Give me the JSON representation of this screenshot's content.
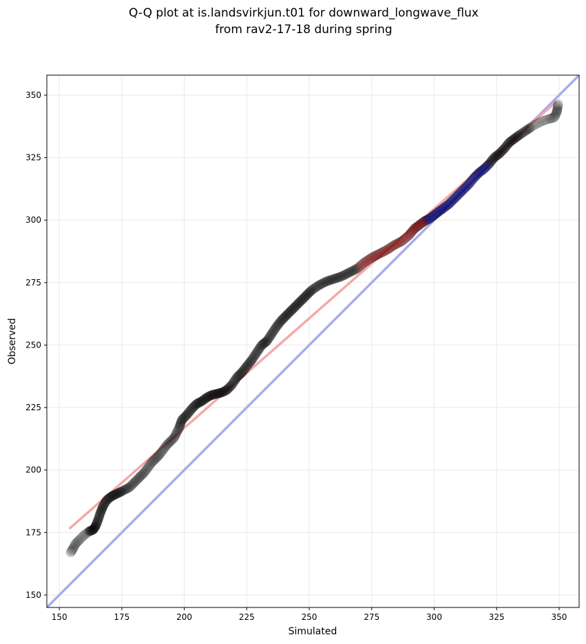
{
  "chart_data": {
    "type": "scatter",
    "title": [
      "Q-Q plot at is.landsvirkjun.t01 for downward_longwave_flux",
      "from rav2-17-18 during spring"
    ],
    "xlabel": "Simulated",
    "ylabel": "Observed",
    "xlim": [
      145,
      358
    ],
    "ylim": [
      145,
      358
    ],
    "xticks": [
      150,
      175,
      200,
      225,
      250,
      275,
      300,
      325,
      350
    ],
    "yticks": [
      150,
      175,
      200,
      225,
      250,
      275,
      300,
      325,
      350
    ],
    "grid": true,
    "colors": {
      "points": "#000000",
      "reference_line": "#aaaaee",
      "fit_line": "#f5a8a8",
      "highlight_low": "#8b0000",
      "highlight_high": "#00008b"
    },
    "series": [
      {
        "name": "quantiles",
        "kind": "scatter",
        "points": [
          [
            154.5,
            167
          ],
          [
            155.5,
            168.5
          ],
          [
            156.5,
            170.5
          ],
          [
            158,
            172
          ],
          [
            160,
            174
          ],
          [
            162,
            175.5
          ],
          [
            163.5,
            176
          ],
          [
            164.5,
            177.5
          ],
          [
            165.5,
            180
          ],
          [
            166.5,
            183
          ],
          [
            167.5,
            185.5
          ],
          [
            169,
            188
          ],
          [
            171,
            189.5
          ],
          [
            173,
            190.5
          ],
          [
            175,
            191.5
          ],
          [
            178,
            193
          ],
          [
            181,
            196
          ],
          [
            184,
            199
          ],
          [
            187,
            203
          ],
          [
            190,
            206
          ],
          [
            193,
            210
          ],
          [
            196,
            213
          ],
          [
            198,
            217
          ],
          [
            199,
            220
          ],
          [
            201,
            222
          ],
          [
            203,
            224.5
          ],
          [
            205,
            226.5
          ],
          [
            207,
            227.5
          ],
          [
            209,
            229
          ],
          [
            211,
            230
          ],
          [
            213,
            230.5
          ],
          [
            215,
            231
          ],
          [
            217,
            232
          ],
          [
            219,
            234
          ],
          [
            221,
            237
          ],
          [
            223,
            239
          ],
          [
            225,
            241.5
          ],
          [
            227,
            244
          ],
          [
            229,
            247
          ],
          [
            231,
            250
          ],
          [
            233,
            251.5
          ],
          [
            235,
            254.5
          ],
          [
            237,
            257.5
          ],
          [
            239,
            260
          ],
          [
            241,
            262
          ],
          [
            243,
            264
          ],
          [
            245,
            266
          ],
          [
            247,
            268
          ],
          [
            249,
            270
          ],
          [
            251,
            272
          ],
          [
            254,
            274
          ],
          [
            257,
            275.5
          ],
          [
            260,
            276.5
          ],
          [
            263,
            277.5
          ],
          [
            266,
            279
          ],
          [
            269,
            280.5
          ],
          [
            272,
            283
          ],
          [
            275,
            285
          ],
          [
            278,
            286.5
          ],
          [
            281,
            288
          ],
          [
            284,
            290
          ],
          [
            287,
            291.5
          ],
          [
            290,
            294
          ],
          [
            292,
            296.5
          ],
          [
            294,
            298
          ],
          [
            296,
            299.5
          ],
          [
            298,
            300.5
          ],
          [
            300,
            302
          ],
          [
            302,
            303.5
          ],
          [
            304,
            305
          ],
          [
            306,
            306.5
          ],
          [
            308,
            308.5
          ],
          [
            310,
            310.5
          ],
          [
            312,
            312.5
          ],
          [
            314,
            314.5
          ],
          [
            316,
            317
          ],
          [
            318,
            319
          ],
          [
            320,
            320.5
          ],
          [
            322,
            322.5
          ],
          [
            324,
            325
          ],
          [
            326,
            326.5
          ],
          [
            328,
            328.5
          ],
          [
            330,
            331
          ],
          [
            332,
            332.5
          ],
          [
            334,
            334
          ],
          [
            337,
            336
          ],
          [
            340,
            338
          ],
          [
            343,
            339.5
          ],
          [
            346,
            340.5
          ],
          [
            348,
            341
          ],
          [
            349,
            343
          ],
          [
            349.3,
            344.5
          ],
          [
            349.6,
            346.5
          ]
        ]
      },
      {
        "name": "1:1 reference",
        "kind": "line",
        "points": [
          [
            145,
            145
          ],
          [
            358,
            358
          ]
        ]
      },
      {
        "name": "linear fit",
        "kind": "line",
        "points": [
          [
            154,
            176.5
          ],
          [
            349,
            347.5
          ]
        ]
      }
    ]
  }
}
